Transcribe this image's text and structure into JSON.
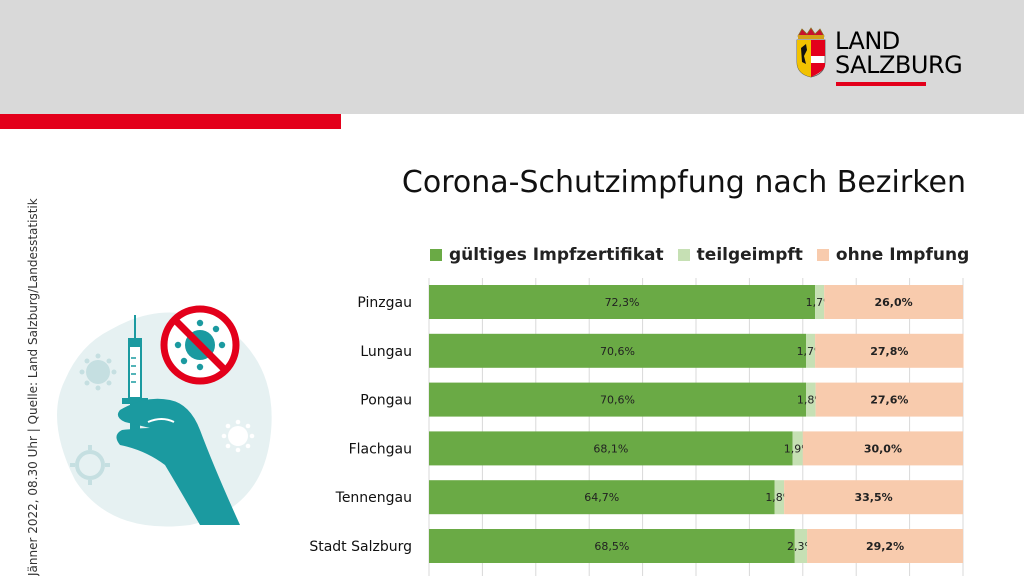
{
  "header": {
    "logo_line1": "LAND",
    "logo_line2": "SALZBURG"
  },
  "source_text": "Jänner 2022, 08.30 Uhr | Quelle: Land Salzburg/Landesstatistik",
  "colors": {
    "header_bg": "#d9d9d9",
    "accent_red": "#e3001b",
    "green_full": "#6aaa45",
    "green_partial": "#c6e0b4",
    "none": "#f8cbad",
    "illustration_teal": "#1b9aa0"
  },
  "chart_data": {
    "type": "bar",
    "orientation": "horizontal",
    "stacked": true,
    "percent_stacked": true,
    "title": "Corona-Schutzimpfung nach Bezirken",
    "categories": [
      "Pinzgau",
      "Lungau",
      "Pongau",
      "Flachgau",
      "Tennengau",
      "Stadt Salzburg"
    ],
    "series": [
      {
        "name": "gültiges Impfzertifikat",
        "color": "#6aaa45",
        "values": [
          72.3,
          70.6,
          70.6,
          68.1,
          64.7,
          68.5
        ],
        "labels": [
          "72,3%",
          "70,6%",
          "70,6%",
          "68,1%",
          "64,7%",
          "68,5%"
        ]
      },
      {
        "name": "teilgeimpft",
        "color": "#c6e0b4",
        "values": [
          1.7,
          1.7,
          1.8,
          1.9,
          1.8,
          2.3
        ],
        "labels": [
          "1,7%",
          "1,7%",
          "1,8%",
          "1,9%",
          "1,8%",
          "2,3%"
        ]
      },
      {
        "name": "ohne Impfung",
        "color": "#f8cbad",
        "values": [
          26.0,
          27.8,
          27.6,
          30.0,
          33.5,
          29.2
        ],
        "labels": [
          "26,0%",
          "27,8%",
          "27,6%",
          "30,0%",
          "33,5%",
          "29,2%"
        ]
      }
    ],
    "xlim": [
      0,
      100
    ],
    "grid": true,
    "legend_position": "top"
  }
}
